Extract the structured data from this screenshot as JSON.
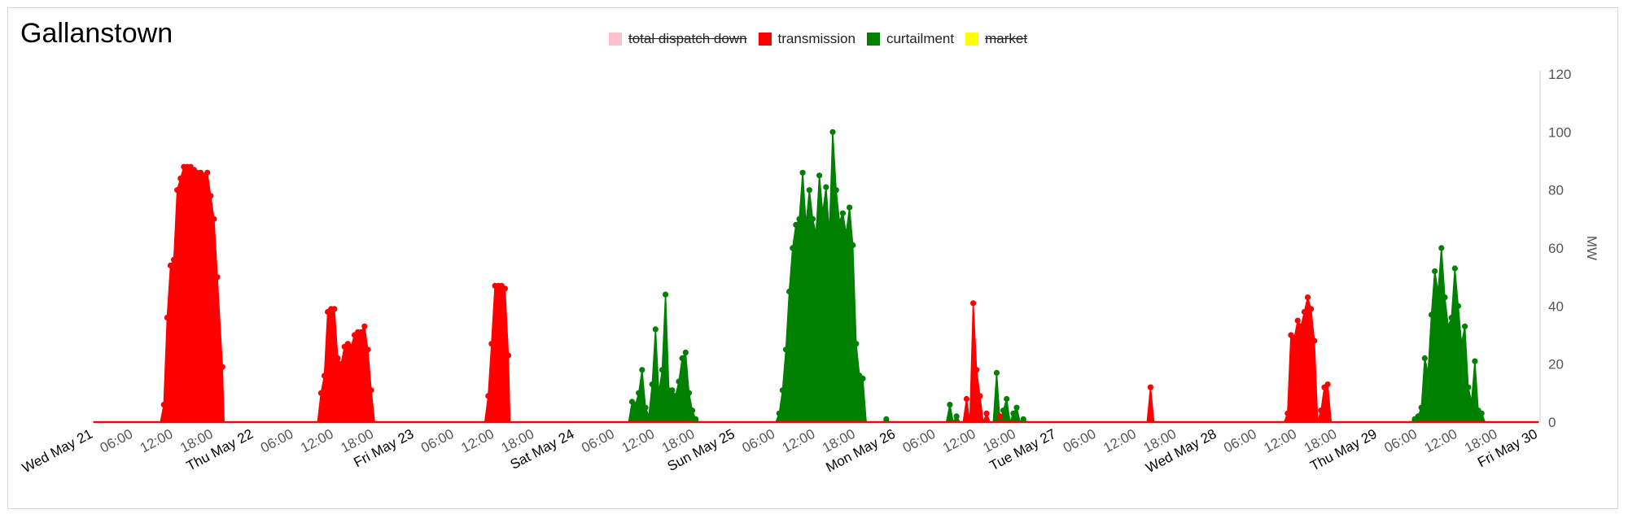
{
  "title": "Gallanstown",
  "legend": [
    {
      "label": "total dispatch down",
      "color": "#ffc0cb",
      "hidden": true
    },
    {
      "label": "transmission",
      "color": "#ff0000",
      "hidden": false
    },
    {
      "label": "curtailment",
      "color": "#008000",
      "hidden": false
    },
    {
      "label": "market",
      "color": "#ffff00",
      "hidden": true
    }
  ],
  "chart_data": {
    "type": "area",
    "ylabel": "MW",
    "ylim": [
      0,
      120
    ],
    "y_ticks": [
      "0",
      "20",
      "40",
      "60",
      "80",
      "100",
      "120"
    ],
    "y_axis_side": "right",
    "legend_position": "top-center",
    "x_range": [
      "2025-05-21 00:00",
      "2025-05-30 00:00"
    ],
    "x_ticks": [
      {
        "label": "Wed May 21",
        "major": true
      },
      {
        "label": "06:00",
        "major": false
      },
      {
        "label": "12:00",
        "major": false
      },
      {
        "label": "18:00",
        "major": false
      },
      {
        "label": "Thu May 22",
        "major": true
      },
      {
        "label": "06:00",
        "major": false
      },
      {
        "label": "12:00",
        "major": false
      },
      {
        "label": "18:00",
        "major": false
      },
      {
        "label": "Fri May 23",
        "major": true
      },
      {
        "label": "06:00",
        "major": false
      },
      {
        "label": "12:00",
        "major": false
      },
      {
        "label": "18:00",
        "major": false
      },
      {
        "label": "Sat May 24",
        "major": true
      },
      {
        "label": "06:00",
        "major": false
      },
      {
        "label": "12:00",
        "major": false
      },
      {
        "label": "18:00",
        "major": false
      },
      {
        "label": "Sun May 25",
        "major": true
      },
      {
        "label": "06:00",
        "major": false
      },
      {
        "label": "12:00",
        "major": false
      },
      {
        "label": "18:00",
        "major": false
      },
      {
        "label": "Mon May 26",
        "major": true
      },
      {
        "label": "06:00",
        "major": false
      },
      {
        "label": "12:00",
        "major": false
      },
      {
        "label": "18:00",
        "major": false
      },
      {
        "label": "Tue May 27",
        "major": true
      },
      {
        "label": "06:00",
        "major": false
      },
      {
        "label": "12:00",
        "major": false
      },
      {
        "label": "18:00",
        "major": false
      },
      {
        "label": "Wed May 28",
        "major": true
      },
      {
        "label": "06:00",
        "major": false
      },
      {
        "label": "12:00",
        "major": false
      },
      {
        "label": "18:00",
        "major": false
      },
      {
        "label": "Thu May 29",
        "major": true
      },
      {
        "label": "06:00",
        "major": false
      },
      {
        "label": "12:00",
        "major": false
      },
      {
        "label": "18:00",
        "major": false
      },
      {
        "label": "Fri May 30",
        "major": true
      }
    ],
    "series": [
      {
        "name": "transmission",
        "color": "#ff0000",
        "points": [
          [
            "2025-05-21 00:00",
            0
          ],
          [
            "2025-05-21 10:00",
            0
          ],
          [
            "2025-05-21 10:30",
            6
          ],
          [
            "2025-05-21 11:00",
            36
          ],
          [
            "2025-05-21 11:30",
            54
          ],
          [
            "2025-05-21 12:00",
            56
          ],
          [
            "2025-05-21 12:30",
            80
          ],
          [
            "2025-05-21 13:00",
            84
          ],
          [
            "2025-05-21 13:30",
            88
          ],
          [
            "2025-05-21 14:00",
            88
          ],
          [
            "2025-05-21 14:30",
            88
          ],
          [
            "2025-05-21 15:00",
            87
          ],
          [
            "2025-05-21 15:30",
            86
          ],
          [
            "2025-05-21 16:00",
            86
          ],
          [
            "2025-05-21 16:30",
            85
          ],
          [
            "2025-05-21 17:00",
            86
          ],
          [
            "2025-05-21 17:30",
            78
          ],
          [
            "2025-05-21 18:00",
            70
          ],
          [
            "2025-05-21 18:30",
            50
          ],
          [
            "2025-05-21 19:15",
            19
          ],
          [
            "2025-05-21 19:30",
            0
          ],
          [
            "2025-05-22 09:30",
            0
          ],
          [
            "2025-05-22 10:00",
            10
          ],
          [
            "2025-05-22 10:30",
            16
          ],
          [
            "2025-05-22 11:00",
            38
          ],
          [
            "2025-05-22 11:30",
            39
          ],
          [
            "2025-05-22 12:00",
            39
          ],
          [
            "2025-05-22 12:30",
            22
          ],
          [
            "2025-05-22 13:00",
            20
          ],
          [
            "2025-05-22 13:30",
            26
          ],
          [
            "2025-05-22 14:00",
            27
          ],
          [
            "2025-05-22 14:30",
            26
          ],
          [
            "2025-05-22 15:00",
            30
          ],
          [
            "2025-05-22 15:30",
            31
          ],
          [
            "2025-05-22 16:00",
            31
          ],
          [
            "2025-05-22 16:30",
            33
          ],
          [
            "2025-05-22 17:00",
            25
          ],
          [
            "2025-05-22 17:30",
            11
          ],
          [
            "2025-05-22 18:00",
            0
          ],
          [
            "2025-05-23 10:30",
            0
          ],
          [
            "2025-05-23 11:00",
            9
          ],
          [
            "2025-05-23 11:30",
            27
          ],
          [
            "2025-05-23 12:00",
            47
          ],
          [
            "2025-05-23 12:30",
            47
          ],
          [
            "2025-05-23 13:00",
            47
          ],
          [
            "2025-05-23 13:30",
            46
          ],
          [
            "2025-05-23 14:00",
            23
          ],
          [
            "2025-05-23 14:15",
            0
          ],
          [
            "2025-05-26 10:00",
            0
          ],
          [
            "2025-05-26 10:30",
            8
          ],
          [
            "2025-05-26 11:00",
            0
          ],
          [
            "2025-05-26 11:30",
            41
          ],
          [
            "2025-05-26 12:00",
            18
          ],
          [
            "2025-05-26 12:30",
            9
          ],
          [
            "2025-05-26 13:00",
            0
          ],
          [
            "2025-05-26 13:30",
            3
          ],
          [
            "2025-05-26 14:00",
            0
          ],
          [
            "2025-05-26 15:00",
            0
          ],
          [
            "2025-05-26 15:30",
            2
          ],
          [
            "2025-05-26 16:00",
            0
          ],
          [
            "2025-05-27 13:30",
            0
          ],
          [
            "2025-05-27 14:00",
            12
          ],
          [
            "2025-05-27 14:30",
            0
          ],
          [
            "2025-05-28 10:00",
            0
          ],
          [
            "2025-05-28 10:30",
            3
          ],
          [
            "2025-05-28 11:00",
            30
          ],
          [
            "2025-05-28 11:30",
            29
          ],
          [
            "2025-05-28 12:00",
            35
          ],
          [
            "2025-05-28 12:30",
            33
          ],
          [
            "2025-05-28 13:00",
            38
          ],
          [
            "2025-05-28 13:30",
            43
          ],
          [
            "2025-05-28 14:00",
            39
          ],
          [
            "2025-05-28 14:30",
            28
          ],
          [
            "2025-05-28 15:00",
            0
          ],
          [
            "2025-05-28 15:30",
            4
          ],
          [
            "2025-05-28 16:00",
            12
          ],
          [
            "2025-05-28 16:30",
            13
          ],
          [
            "2025-05-28 17:00",
            0
          ],
          [
            "2025-05-30 00:00",
            0
          ]
        ]
      },
      {
        "name": "curtailment",
        "color": "#008000",
        "points": [
          [
            "2025-05-24 08:00",
            0
          ],
          [
            "2025-05-24 08:30",
            7
          ],
          [
            "2025-05-24 09:00",
            6
          ],
          [
            "2025-05-24 09:30",
            10
          ],
          [
            "2025-05-24 10:00",
            18
          ],
          [
            "2025-05-24 10:30",
            5
          ],
          [
            "2025-05-24 11:00",
            2
          ],
          [
            "2025-05-24 11:30",
            13
          ],
          [
            "2025-05-24 12:00",
            32
          ],
          [
            "2025-05-24 12:30",
            10
          ],
          [
            "2025-05-24 13:00",
            18
          ],
          [
            "2025-05-24 13:30",
            44
          ],
          [
            "2025-05-24 14:00",
            11
          ],
          [
            "2025-05-24 14:30",
            11
          ],
          [
            "2025-05-24 15:00",
            9
          ],
          [
            "2025-05-24 15:30",
            14
          ],
          [
            "2025-05-24 16:00",
            22
          ],
          [
            "2025-05-24 16:30",
            24
          ],
          [
            "2025-05-24 17:00",
            10
          ],
          [
            "2025-05-24 17:30",
            4
          ],
          [
            "2025-05-24 18:00",
            1
          ],
          [
            "2025-05-24 18:30",
            0
          ],
          [
            "2025-05-25 06:00",
            0
          ],
          [
            "2025-05-25 06:30",
            3
          ],
          [
            "2025-05-25 07:00",
            11
          ],
          [
            "2025-05-25 07:30",
            25
          ],
          [
            "2025-05-25 08:00",
            45
          ],
          [
            "2025-05-25 08:30",
            60
          ],
          [
            "2025-05-25 09:00",
            68
          ],
          [
            "2025-05-25 09:30",
            70
          ],
          [
            "2025-05-25 10:00",
            86
          ],
          [
            "2025-05-25 10:30",
            68
          ],
          [
            "2025-05-25 11:00",
            80
          ],
          [
            "2025-05-25 11:30",
            70
          ],
          [
            "2025-05-25 12:00",
            65
          ],
          [
            "2025-05-25 12:30",
            85
          ],
          [
            "2025-05-25 13:00",
            72
          ],
          [
            "2025-05-25 13:30",
            81
          ],
          [
            "2025-05-25 14:00",
            65
          ],
          [
            "2025-05-25 14:30",
            100
          ],
          [
            "2025-05-25 15:00",
            80
          ],
          [
            "2025-05-25 15:30",
            69
          ],
          [
            "2025-05-25 16:00",
            72
          ],
          [
            "2025-05-25 16:30",
            65
          ],
          [
            "2025-05-25 17:00",
            74
          ],
          [
            "2025-05-25 17:30",
            61
          ],
          [
            "2025-05-25 18:00",
            27
          ],
          [
            "2025-05-25 18:30",
            16
          ],
          [
            "2025-05-25 19:00",
            15
          ],
          [
            "2025-05-25 19:30",
            0
          ],
          [
            "2025-05-25 22:00",
            0
          ],
          [
            "2025-05-25 22:30",
            1
          ],
          [
            "2025-05-25 23:00",
            0
          ],
          [
            "2025-05-26 07:30",
            0
          ],
          [
            "2025-05-26 08:00",
            6
          ],
          [
            "2025-05-26 08:30",
            0
          ],
          [
            "2025-05-26 09:00",
            2
          ],
          [
            "2025-05-26 09:30",
            0
          ],
          [
            "2025-05-26 14:30",
            0
          ],
          [
            "2025-05-26 15:00",
            17
          ],
          [
            "2025-05-26 15:30",
            0
          ],
          [
            "2025-05-26 16:00",
            4
          ],
          [
            "2025-05-26 16:30",
            8
          ],
          [
            "2025-05-26 17:00",
            0
          ],
          [
            "2025-05-26 17:30",
            3
          ],
          [
            "2025-05-26 18:00",
            5
          ],
          [
            "2025-05-26 18:30",
            0
          ],
          [
            "2025-05-26 19:00",
            1
          ],
          [
            "2025-05-26 19:30",
            0
          ],
          [
            "2025-05-29 05:00",
            0
          ],
          [
            "2025-05-29 05:30",
            1
          ],
          [
            "2025-05-29 06:00",
            2
          ],
          [
            "2025-05-29 06:30",
            5
          ],
          [
            "2025-05-29 07:00",
            22
          ],
          [
            "2025-05-29 07:30",
            17
          ],
          [
            "2025-05-29 08:00",
            37
          ],
          [
            "2025-05-29 08:30",
            52
          ],
          [
            "2025-05-29 09:00",
            45
          ],
          [
            "2025-05-29 09:30",
            60
          ],
          [
            "2025-05-29 10:00",
            43
          ],
          [
            "2025-05-29 10:30",
            33
          ],
          [
            "2025-05-29 11:00",
            36
          ],
          [
            "2025-05-29 11:30",
            53
          ],
          [
            "2025-05-29 12:00",
            40
          ],
          [
            "2025-05-29 12:30",
            27
          ],
          [
            "2025-05-29 13:00",
            33
          ],
          [
            "2025-05-29 13:30",
            12
          ],
          [
            "2025-05-29 14:00",
            7
          ],
          [
            "2025-05-29 14:30",
            21
          ],
          [
            "2025-05-29 15:00",
            4
          ],
          [
            "2025-05-29 15:30",
            3
          ],
          [
            "2025-05-29 16:00",
            0
          ]
        ]
      }
    ]
  }
}
